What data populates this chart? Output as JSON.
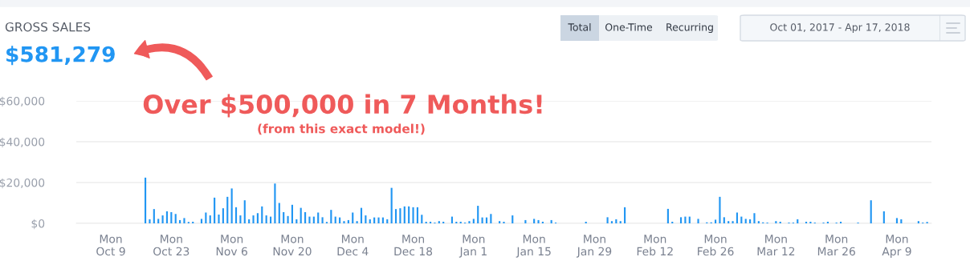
{
  "chart_data": {
    "type": "bar",
    "title": "GROSS SALES",
    "subtitle": "$581,279",
    "annotations": [
      "Over $500,000 in 7 Months!",
      "(from this exact model!)",
      "Total",
      "One-Time",
      "Recurring",
      "Oct 01, 2017 - Apr 17, 2018"
    ],
    "x": [
      "2017-10-17",
      "2017-10-18",
      "2017-10-19",
      "2017-10-20",
      "2017-10-21",
      "2017-10-22",
      "2017-10-23",
      "2017-10-24",
      "2017-10-25",
      "2017-10-26",
      "2017-10-27",
      "2017-10-28",
      "2017-10-30",
      "2017-10-31",
      "2017-11-01",
      "2017-11-02",
      "2017-11-03",
      "2017-11-04",
      "2017-11-05",
      "2017-11-06",
      "2017-11-07",
      "2017-11-08",
      "2017-11-09",
      "2017-11-10",
      "2017-11-11",
      "2017-11-12",
      "2017-11-13",
      "2017-11-14",
      "2017-11-15",
      "2017-11-16",
      "2017-11-17",
      "2017-11-18",
      "2017-11-19",
      "2017-11-20",
      "2017-11-21",
      "2017-11-22",
      "2017-11-23",
      "2017-11-24",
      "2017-11-25",
      "2017-11-26",
      "2017-11-27",
      "2017-11-28",
      "2017-11-29",
      "2017-11-30",
      "2017-12-01",
      "2017-12-02",
      "2017-12-03",
      "2017-12-04",
      "2017-12-05",
      "2017-12-06",
      "2017-12-07",
      "2017-12-08",
      "2017-12-09",
      "2017-12-10",
      "2017-12-11",
      "2017-12-12",
      "2017-12-13",
      "2017-12-14",
      "2017-12-15",
      "2017-12-16",
      "2017-12-17",
      "2017-12-18",
      "2017-12-19",
      "2017-12-20",
      "2017-12-21",
      "2017-12-22",
      "2017-12-23",
      "2017-12-24",
      "2017-12-25",
      "2017-12-27",
      "2017-12-28",
      "2017-12-29",
      "2017-12-30",
      "2017-12-31",
      "2018-01-01",
      "2018-01-02",
      "2018-01-03",
      "2018-01-04",
      "2018-01-05",
      "2018-01-07",
      "2018-01-08",
      "2018-01-10",
      "2018-01-13",
      "2018-01-15",
      "2018-01-16",
      "2018-01-17",
      "2018-01-19",
      "2018-01-20",
      "2018-01-27",
      "2018-02-01",
      "2018-02-02",
      "2018-02-03",
      "2018-02-04",
      "2018-02-05",
      "2018-02-15",
      "2018-02-16",
      "2018-02-18",
      "2018-02-19",
      "2018-02-20",
      "2018-02-22",
      "2018-02-24",
      "2018-02-25",
      "2018-02-26",
      "2018-02-27",
      "2018-02-28",
      "2018-03-01",
      "2018-03-02",
      "2018-03-03",
      "2018-03-04",
      "2018-03-05",
      "2018-03-06",
      "2018-03-07",
      "2018-03-08",
      "2018-03-09",
      "2018-03-10",
      "2018-03-12",
      "2018-03-13",
      "2018-03-15",
      "2018-03-16",
      "2018-03-17",
      "2018-03-19",
      "2018-03-20",
      "2018-03-21",
      "2018-03-23",
      "2018-03-24",
      "2018-03-26",
      "2018-03-27",
      "2018-03-31",
      "2018-04-03",
      "2018-04-06",
      "2018-04-09",
      "2018-04-10",
      "2018-04-14",
      "2018-04-15",
      "2018-04-16"
    ],
    "series": [
      {
        "color": "#2196f3",
        "values": [
          22400,
          2000,
          7000,
          2200,
          3900,
          5900,
          5500,
          4600,
          1600,
          2600,
          700,
          800,
          2200,
          5300,
          3900,
          12600,
          4300,
          7400,
          13000,
          17100,
          7900,
          3900,
          11300,
          2000,
          3900,
          5000,
          8300,
          3900,
          3300,
          19500,
          10000,
          5500,
          3600,
          9100,
          2000,
          7600,
          5500,
          3300,
          3300,
          5300,
          3000,
          700,
          6600,
          3300,
          2900,
          1100,
          1600,
          5300,
          1100,
          7600,
          3900,
          2000,
          2900,
          2900,
          2900,
          2000,
          17400,
          7000,
          7400,
          8300,
          8300,
          7900,
          7900,
          4200,
          800,
          800,
          400,
          1100,
          800,
          3300,
          800,
          800,
          400,
          1100,
          2200,
          8600,
          2900,
          2900,
          4600,
          1100,
          800,
          3900,
          1600,
          2200,
          1600,
          800,
          1600,
          400,
          800,
          3000,
          1100,
          2000,
          1100,
          7900,
          7100,
          800,
          3000,
          3300,
          3300,
          2200,
          500,
          500,
          1800,
          13000,
          3000,
          1100,
          1100,
          5300,
          3300,
          2200,
          2000,
          5000,
          1100,
          500,
          400,
          1100,
          800,
          400,
          400,
          2000,
          800,
          800,
          400,
          400,
          800,
          400,
          800,
          400,
          11300,
          5900,
          2600,
          2000,
          1100,
          400,
          700
        ]
      }
    ],
    "xlim": [
      "2017-10-01",
      "2018-04-17"
    ],
    "xticks": [
      {
        "value": "2017-10-09",
        "label": "Mon\nOct 9"
      },
      {
        "value": "2017-10-23",
        "label": "Mon\nOct 23"
      },
      {
        "value": "2017-11-06",
        "label": "Mon\nNov 6"
      },
      {
        "value": "2017-11-20",
        "label": "Mon\nNov 20"
      },
      {
        "value": "2017-12-04",
        "label": "Mon\nDec 4"
      },
      {
        "value": "2017-12-18",
        "label": "Mon\nDec 18"
      },
      {
        "value": "2018-01-01",
        "label": "Mon\nJan 1"
      },
      {
        "value": "2018-01-15",
        "label": "Mon\nJan 15"
      },
      {
        "value": "2018-01-29",
        "label": "Mon\nJan 29"
      },
      {
        "value": "2018-02-12",
        "label": "Mon\nFeb 12"
      },
      {
        "value": "2018-02-26",
        "label": "Mon\nFeb 26"
      },
      {
        "value": "2018-03-12",
        "label": "Mon\nMar 12"
      },
      {
        "value": "2018-03-26",
        "label": "Mon\nMar 26"
      },
      {
        "value": "2018-04-09",
        "label": "Mon\nApr 9"
      }
    ],
    "ylim": [
      0,
      60000
    ],
    "yticks": [
      {
        "value": 0,
        "label": "$0"
      },
      {
        "value": 20000,
        "label": "$20,000"
      },
      {
        "value": 40000,
        "label": "$40,000"
      },
      {
        "value": 60000,
        "label": "$60,000"
      }
    ],
    "grid": "y"
  }
}
